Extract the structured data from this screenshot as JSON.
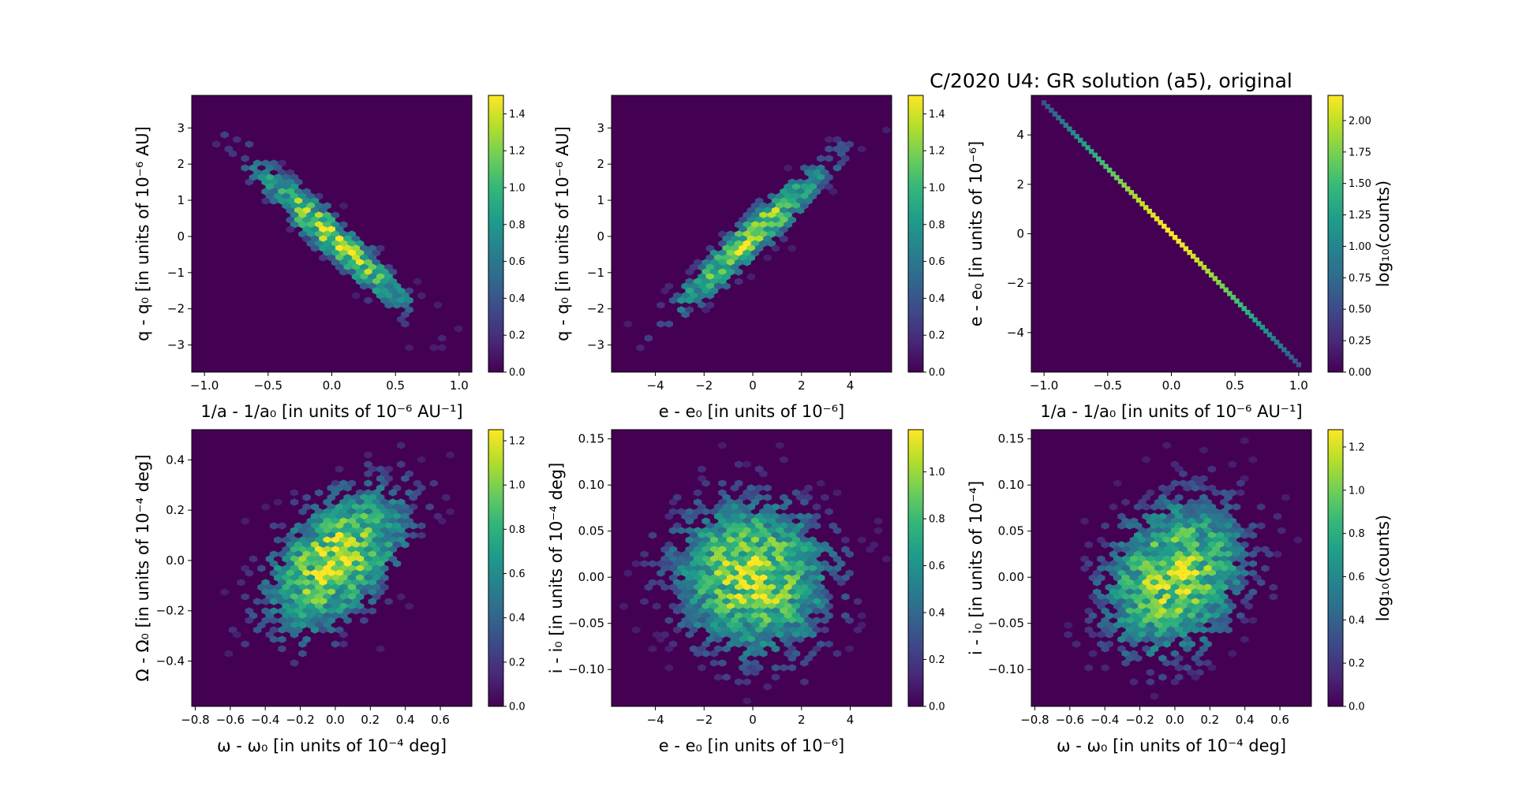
{
  "figure": {
    "title": "C/2020 U4: GR solution (a5), original"
  },
  "colormap": [
    "#440154",
    "#482878",
    "#3e4989",
    "#31688e",
    "#26828e",
    "#1f9e89",
    "#35b779",
    "#6ece58",
    "#b5de2b",
    "#fde725"
  ],
  "chart_data": [
    {
      "id": "p1",
      "type": "heatmap",
      "style": "hexbin",
      "xlabel": "1/a - 1/a₀ [in units of 10⁻⁶ AU⁻¹]",
      "ylabel": "q - q₀ [in units of 10⁻⁶ AU]",
      "xlim": [
        -1.1,
        1.1
      ],
      "ylim": [
        -3.75,
        3.9
      ],
      "xticks": [
        -1.0,
        -0.5,
        0.0,
        0.5,
        1.0
      ],
      "xtick_labels": [
        "−1.0",
        "−0.5",
        "0.0",
        "0.5",
        "1.0"
      ],
      "yticks": [
        -3,
        -2,
        -1,
        0,
        1,
        2,
        3
      ],
      "ytick_labels": [
        "−3",
        "−2",
        "−1",
        "0",
        "1",
        "2",
        "3"
      ],
      "distribution": {
        "mean": [
          0,
          0
        ],
        "sd": [
          0.34,
          1.12
        ],
        "correlation": -0.95
      },
      "colorbar": {
        "label": "",
        "min": 0.0,
        "max": 1.5,
        "ticks": [
          0.0,
          0.2,
          0.4,
          0.6,
          0.8,
          1.0,
          1.2,
          1.4
        ],
        "tick_labels": [
          "0.0",
          "0.2",
          "0.4",
          "0.6",
          "0.8",
          "1.0",
          "1.2",
          "1.4"
        ]
      }
    },
    {
      "id": "p2",
      "type": "heatmap",
      "style": "hexbin",
      "xlabel": "e - e₀ [in units of 10⁻⁶]",
      "ylabel": "q - q₀ [in units of 10⁻⁶ AU]",
      "xlim": [
        -5.8,
        5.7
      ],
      "ylim": [
        -3.75,
        3.9
      ],
      "xticks": [
        -4,
        -2,
        0,
        2,
        4
      ],
      "xtick_labels": [
        "−4",
        "−2",
        "0",
        "2",
        "4"
      ],
      "yticks": [
        -3,
        -2,
        -1,
        0,
        1,
        2,
        3
      ],
      "ytick_labels": [
        "−3",
        "−2",
        "−1",
        "0",
        "1",
        "2",
        "3"
      ],
      "distribution": {
        "mean": [
          0,
          0
        ],
        "sd": [
          1.75,
          1.12
        ],
        "correlation": 0.95
      },
      "colorbar": {
        "label": "",
        "min": 0.0,
        "max": 1.5,
        "ticks": [
          0.0,
          0.2,
          0.4,
          0.6,
          0.8,
          1.0,
          1.2,
          1.4
        ],
        "tick_labels": [
          "0.0",
          "0.2",
          "0.4",
          "0.6",
          "0.8",
          "1.0",
          "1.2",
          "1.4"
        ]
      }
    },
    {
      "id": "p3",
      "type": "heatmap",
      "style": "hexbin",
      "title": "C/2020 U4: GR solution (a5), original",
      "xlabel": "1/a - 1/a₀ [in units of 10⁻⁶ AU⁻¹]",
      "ylabel": "e - e₀ [in units of 10⁻⁶]",
      "xlim": [
        -1.1,
        1.1
      ],
      "ylim": [
        -5.6,
        5.6
      ],
      "xticks": [
        -1.0,
        -0.5,
        0.0,
        0.5,
        1.0
      ],
      "xtick_labels": [
        "−1.0",
        "−0.5",
        "0.0",
        "0.5",
        "1.0"
      ],
      "yticks": [
        -4,
        -2,
        0,
        2,
        4
      ],
      "ytick_labels": [
        "−4",
        "−2",
        "0",
        "2",
        "4"
      ],
      "line": {
        "from": [
          -1.0,
          5.3
        ],
        "to": [
          1.0,
          -5.3
        ]
      },
      "colorbar": {
        "label": "log₁₀(counts)",
        "min": 0.0,
        "max": 2.2,
        "ticks": [
          0.0,
          0.25,
          0.5,
          0.75,
          1.0,
          1.25,
          1.5,
          1.75,
          2.0
        ],
        "tick_labels": [
          "0.00",
          "0.25",
          "0.50",
          "0.75",
          "1.00",
          "1.25",
          "1.50",
          "1.75",
          "2.00"
        ]
      }
    },
    {
      "id": "p4",
      "type": "heatmap",
      "style": "hexbin",
      "xlabel": "ω - ω₀ [in units of 10⁻⁴ deg]",
      "ylabel": "Ω - Ω₀ [in units of 10⁻⁴ deg]",
      "xlim": [
        -0.82,
        0.78
      ],
      "ylim": [
        -0.58,
        0.52
      ],
      "xticks": [
        -0.8,
        -0.6,
        -0.4,
        -0.2,
        0.0,
        0.2,
        0.4,
        0.6
      ],
      "xtick_labels": [
        "−0.8",
        "−0.6",
        "−0.4",
        "−0.2",
        "0.0",
        "0.2",
        "0.4",
        "0.6"
      ],
      "yticks": [
        -0.4,
        -0.2,
        0.0,
        0.2,
        0.4
      ],
      "ytick_labels": [
        "−0.4",
        "−0.2",
        "0.0",
        "0.2",
        "0.4"
      ],
      "distribution": {
        "mean": [
          0,
          0
        ],
        "sd": [
          0.22,
          0.16
        ],
        "correlation": 0.5
      },
      "colorbar": {
        "label": "",
        "min": 0.0,
        "max": 1.25,
        "ticks": [
          0.0,
          0.2,
          0.4,
          0.6,
          0.8,
          1.0,
          1.2
        ],
        "tick_labels": [
          "0.0",
          "0.2",
          "0.4",
          "0.6",
          "0.8",
          "1.0",
          "1.2"
        ]
      }
    },
    {
      "id": "p5",
      "type": "heatmap",
      "style": "hexbin",
      "xlabel": "e - e₀ [in units of 10⁻⁶]",
      "ylabel": "i - i₀ [in units of 10⁻⁴ deg]",
      "xlim": [
        -5.8,
        5.7
      ],
      "ylim": [
        -0.14,
        0.16
      ],
      "xticks": [
        -4,
        -2,
        0,
        2,
        4
      ],
      "xtick_labels": [
        "−4",
        "−2",
        "0",
        "2",
        "4"
      ],
      "yticks": [
        -0.1,
        -0.05,
        0.0,
        0.05,
        0.1,
        0.15
      ],
      "ytick_labels": [
        "−0.10",
        "−0.05",
        "0.00",
        "0.05",
        "0.10",
        "0.15"
      ],
      "distribution": {
        "mean": [
          0,
          0
        ],
        "sd": [
          1.75,
          0.045
        ],
        "correlation": -0.05
      },
      "colorbar": {
        "label": "",
        "min": 0.0,
        "max": 1.18,
        "ticks": [
          0.0,
          0.2,
          0.4,
          0.6,
          0.8,
          1.0
        ],
        "tick_labels": [
          "0.0",
          "0.2",
          "0.4",
          "0.6",
          "0.8",
          "1.0"
        ]
      }
    },
    {
      "id": "p6",
      "type": "heatmap",
      "style": "hexbin",
      "xlabel": "ω - ω₀ [in units of 10⁻⁴ deg]",
      "ylabel": "i - i₀ [in units of 10⁻⁴]",
      "xlim": [
        -0.82,
        0.78
      ],
      "ylim": [
        -0.14,
        0.16
      ],
      "xticks": [
        -0.8,
        -0.6,
        -0.4,
        -0.2,
        0.0,
        0.2,
        0.4,
        0.6
      ],
      "xtick_labels": [
        "−0.8",
        "−0.6",
        "−0.4",
        "−0.2",
        "0.0",
        "0.2",
        "0.4",
        "0.6"
      ],
      "yticks": [
        -0.1,
        -0.05,
        0.0,
        0.05,
        0.1,
        0.15
      ],
      "ytick_labels": [
        "−0.10",
        "−0.05",
        "0.00",
        "0.05",
        "0.10",
        "0.15"
      ],
      "distribution": {
        "mean": [
          0,
          0
        ],
        "sd": [
          0.22,
          0.045
        ],
        "correlation": 0.25
      },
      "colorbar": {
        "label": "log₁₀(counts)",
        "min": 0.0,
        "max": 1.28,
        "ticks": [
          0.0,
          0.2,
          0.4,
          0.6,
          0.8,
          1.0,
          1.2
        ],
        "tick_labels": [
          "0.0",
          "0.2",
          "0.4",
          "0.6",
          "0.8",
          "1.0",
          "1.2"
        ]
      }
    }
  ]
}
